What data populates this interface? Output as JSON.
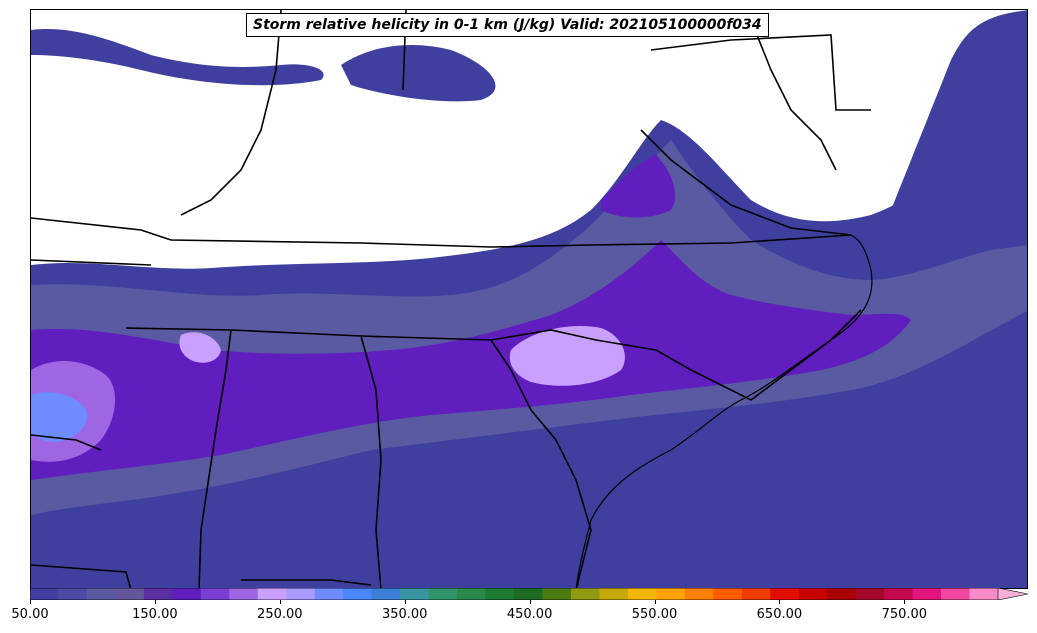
{
  "map": {
    "title": "Storm relative helicity in 0-1 km (J/kg) Valid: 202105100000f034",
    "variable": "Storm relative helicity in 0-1 km",
    "units": "J/kg",
    "valid_time": "202105100000f034"
  },
  "colorbar": {
    "min": 50,
    "max": 825,
    "step": 25,
    "extend": "max",
    "colors": [
      "#3f3f9f",
      "#4b4ba5",
      "#5a5aa2",
      "#63569a",
      "#5b2fa0",
      "#5f1ebd",
      "#7a3fd3",
      "#9e66e3",
      "#c9a0ff",
      "#a99bff",
      "#6f8cff",
      "#4a86f7",
      "#3b7fd6",
      "#3a95a0",
      "#2f9468",
      "#2a8a4c",
      "#1f7a33",
      "#1d6b20",
      "#4a7b12",
      "#8f9a10",
      "#c5a900",
      "#f3b600",
      "#ffa200",
      "#ff8000",
      "#ff5d00",
      "#f03c00",
      "#e20e00",
      "#c80000",
      "#a80000",
      "#a3072a",
      "#c4064e",
      "#e2157c",
      "#f048a1",
      "#f88ac7"
    ],
    "extend_color": "#f9b0d8",
    "tick_labels": [
      "50.00",
      "150.00",
      "250.00",
      "350.00",
      "450.00",
      "550.00",
      "650.00",
      "750.00"
    ],
    "tick_values": [
      50,
      150,
      250,
      350,
      450,
      550,
      650,
      750
    ]
  },
  "colors": {
    "background": "#ffffff",
    "border": "#000000",
    "state_lines": "#000000"
  }
}
